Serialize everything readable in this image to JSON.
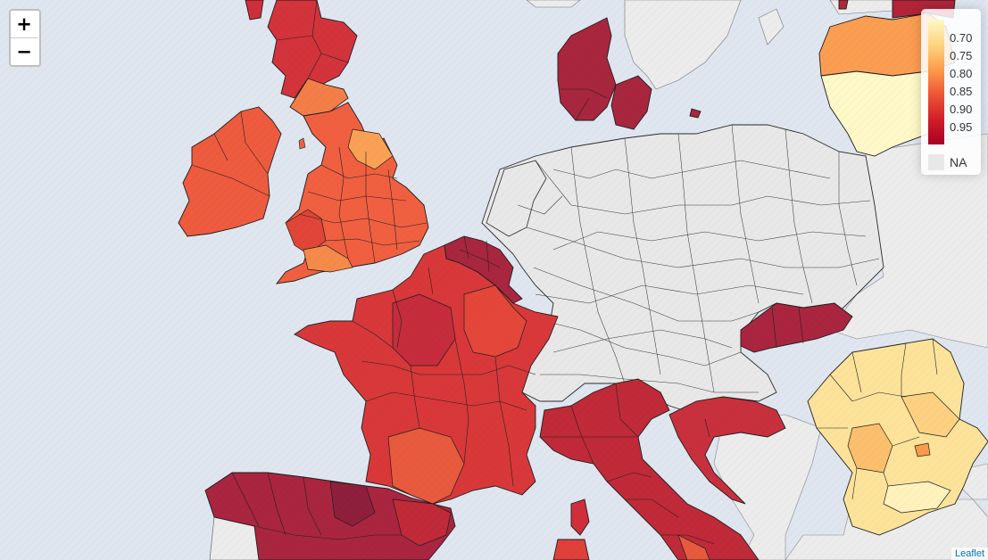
{
  "map": {
    "zoom_in_label": "+",
    "zoom_out_label": "−",
    "attribution": "Leaflet",
    "colors": {
      "sea": "#dfe6f0",
      "na_fill": "#e8e8e8",
      "outside_fill": "#ececec"
    }
  },
  "legend": {
    "ticks": [
      "0.70",
      "0.75",
      "0.80",
      "0.85",
      "0.90",
      "0.95"
    ],
    "na_label": "NA",
    "gradient": [
      "#fff8c6",
      "#fdd57f",
      "#fd9c4b",
      "#ee5535",
      "#d11e29",
      "#a50026"
    ],
    "na_color": "#e8e8e8"
  },
  "regions": [
    {
      "name": "Ireland",
      "value": 0.85
    },
    {
      "name": "Scotland",
      "value": 0.9
    },
    {
      "name": "England",
      "value": 0.82
    },
    {
      "name": "Wales",
      "value": 0.87
    },
    {
      "name": "Belgium",
      "value": 0.96
    },
    {
      "name": "France",
      "value": 0.9
    },
    {
      "name": "Spain",
      "value": 0.96
    },
    {
      "name": "Portugal",
      "value": null
    },
    {
      "name": "Italy",
      "value": 0.93
    },
    {
      "name": "Denmark",
      "value": 0.97
    },
    {
      "name": "Slovakia",
      "value": 0.96
    },
    {
      "name": "Croatia",
      "value": 0.92
    },
    {
      "name": "Romania",
      "value": 0.77
    },
    {
      "name": "Latvia",
      "value": 0.81
    },
    {
      "name": "Lithuania",
      "value": 0.71
    },
    {
      "name": "Germany",
      "value": null
    },
    {
      "name": "Switzerland",
      "value": null
    },
    {
      "name": "Czechia",
      "value": null
    },
    {
      "name": "Poland",
      "value": null
    },
    {
      "name": "Austria",
      "value": null
    },
    {
      "name": "Hungary",
      "value": null
    },
    {
      "name": "Netherlands",
      "value": null
    },
    {
      "name": "Sweden",
      "value": null
    }
  ]
}
